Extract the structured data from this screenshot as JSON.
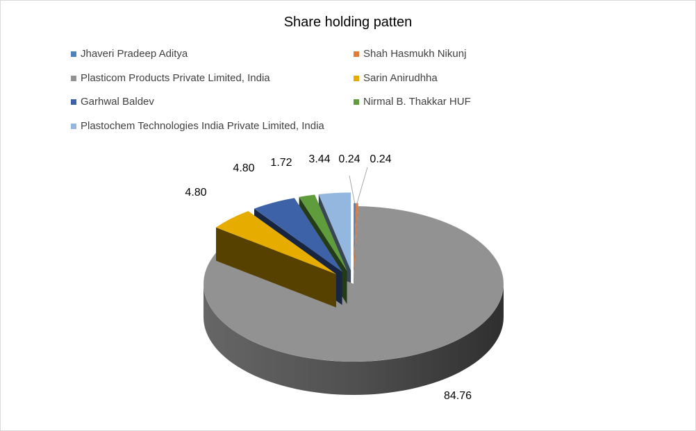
{
  "chart_data": {
    "type": "pie",
    "title": "Share holding patten",
    "legend_position": "top",
    "slices": [
      {
        "name": "Jhaveri Pradeep Aditya",
        "value": 0.24,
        "label": "0.24",
        "color": "#4f81bd"
      },
      {
        "name": "Shah Hasmukh Nikunj",
        "value": 0.24,
        "label": "0.24",
        "color": "#e07b39"
      },
      {
        "name": "Plasticom Products Private Limited, India",
        "value": 84.76,
        "label": "84.76",
        "color": "#929292"
      },
      {
        "name": "Sarin Anirudhha",
        "value": 4.8,
        "label": "4.80",
        "color": "#e6ac00"
      },
      {
        "name": "Garhwal Baldev",
        "value": 4.8,
        "label": "4.80",
        "color": "#3d62a8"
      },
      {
        "name": "Nirmal B. Thakkar HUF",
        "value": 1.72,
        "label": "1.72",
        "color": "#5e9c3c"
      },
      {
        "name": "Plastochem Technologies India Private Limited, India",
        "value": 3.44,
        "label": "3.44",
        "color": "#94b7df"
      }
    ]
  }
}
